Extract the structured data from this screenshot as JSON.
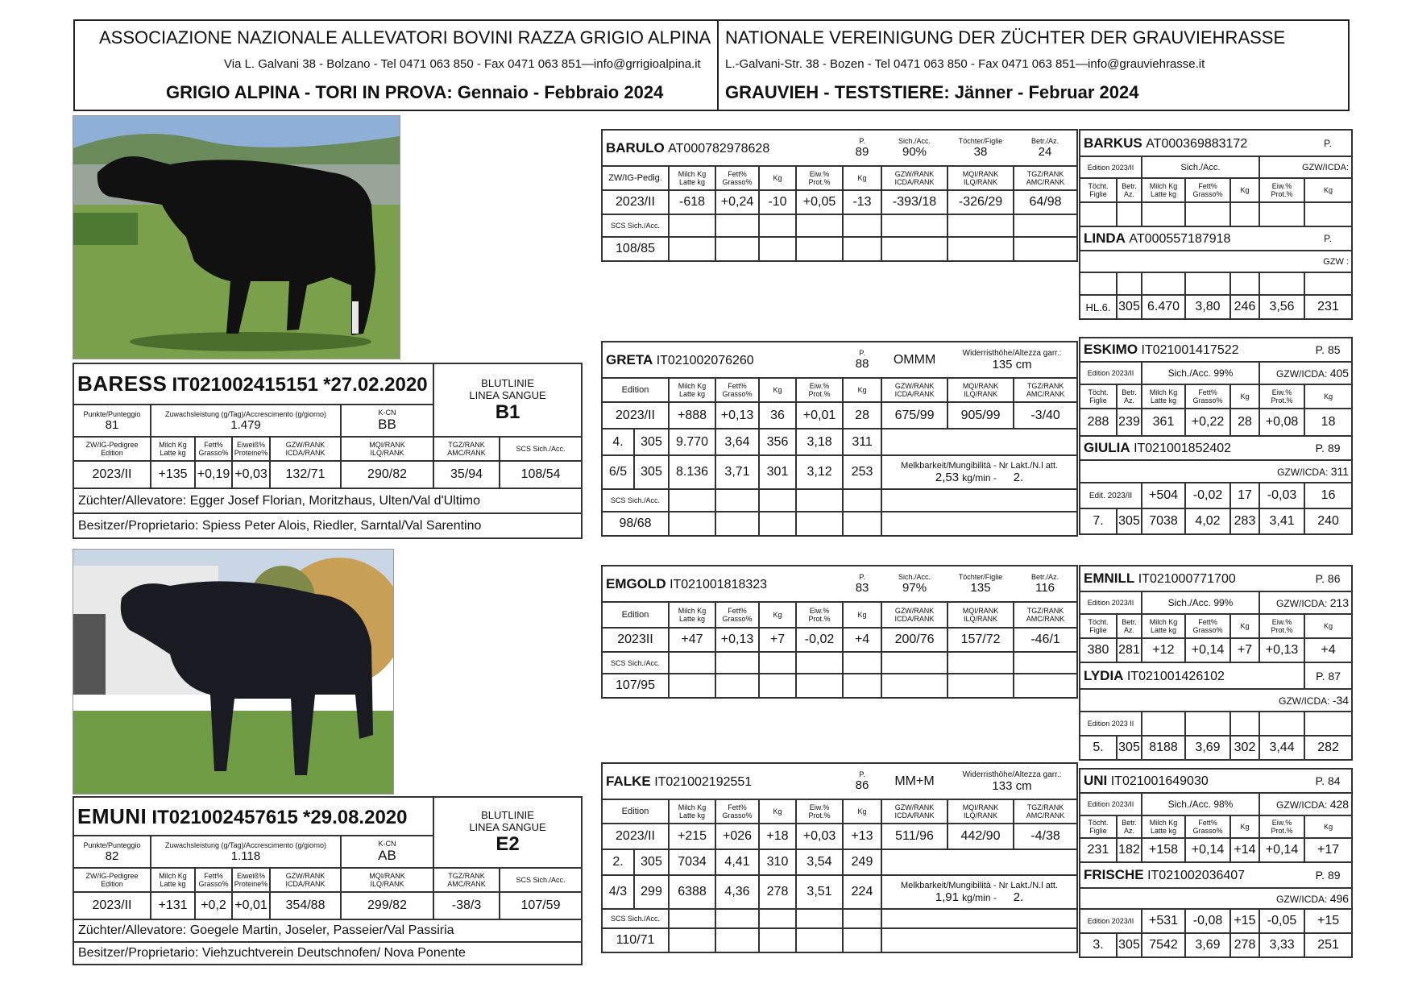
{
  "header": {
    "it_title": "ASSOCIAZIONE NAZIONALE ALLEVATORI BOVINI RAZZA GRIGIO ALPINA",
    "it_address": "Via L. Galvani 38 - Bolzano - Tel 0471 063 850 - Fax  0471 063 851—info@grrigioalpina.it",
    "it_subtitle": "GRIGIO ALPINA - TORI IN PROVA: Gennaio - Febbraio 2024",
    "de_title": "NATIONALE VEREINIGUNG DER ZÜCHTER DER GRAUVIEHRASSE",
    "de_address": "L.-Galvani-Str. 38 - Bozen - Tel 0471 063 850 - Fax  0471 063 851—info@grauviehrasse.it",
    "de_subtitle": "GRAUVIEH - TESTSTIERE: Jänner - Februar 2024"
  },
  "labels": {
    "punkte": "Punkte/Punteggio",
    "zuwachs": "Zuwachsleistung (g/Tag)/Accrescimento (g/giorno)",
    "kcn": "K-CN",
    "blutlinie": "BLUTLINIE",
    "linea": "LINEA SANGUE",
    "zwig_ped": "ZW/IG-Pedigree",
    "edition": "Edition",
    "milch": "Milch Kg",
    "latte": "Latte kg",
    "fett": "Fett%",
    "grasso": "Grasso%",
    "eiweiss": "Eiweiß%",
    "proteine": "Proteine%",
    "gzw": "GZW/RANK",
    "icda": "ICDA/RANK",
    "mqi": "MQI/RANK",
    "ilq": "ILQ/RANK",
    "tgz": "TGZ/RANK",
    "amc": "AMC/RANK",
    "scs": "SCS Sich./Acc.",
    "kg": "Kg",
    "eiw": "Eiw.%",
    "prot": "Prot.%",
    "p": "P.",
    "sich": "Sich./Acc.",
    "toechter": "Töchter/Figlie",
    "betr": "Betr./Az.",
    "zwig": "ZW/IG-Pedig.",
    "widerrist": "Widerristhöhe/Altezza garr.:",
    "melkbarkeit": "Melkbarkeit/Mungibilità - Nr Lakt./N.l att.",
    "kgmin": "kg/min -",
    "toecht": "Töcht.",
    "figlie": "Figlie",
    "betr2": "Betr.",
    "az": "Az.",
    "edit_short": "Edit.",
    "edition_2023": "Edition 2023/II",
    "gzw_icda": "GZW/ICDA:",
    "gzw_colon": "GZW :",
    "sich_acc": "Sich./Acc."
  },
  "baress": {
    "name": "BARESS",
    "code": "IT021002415151",
    "born": "*27.02.2020",
    "punkte": "81",
    "zuwachs": "1.479",
    "kcn": "BB",
    "line": "B1",
    "edition": "2023/II",
    "milch": "+135",
    "fett": "+0,19",
    "eiw": "+0,03",
    "gzw": "132/71",
    "mqi": "290/82",
    "tgz": "35/94",
    "scs": "108/54",
    "zuechter": "Züchter/Allevatore: Egger Josef Florian, Moritzhaus, Ulten/Val d'Ultimo",
    "besitzer": "Besitzer/Proprietario: Spiess Peter Alois, Riedler, Sarntal/Val Sarentino"
  },
  "emuni": {
    "name": "EMUNI",
    "code": "IT021002457615",
    "born": "*29.08.2020",
    "punkte": "82",
    "zuwachs": "1.118",
    "kcn": "AB",
    "line": "E2",
    "edition": "2023/II",
    "milch": "+131",
    "fett": "+0,2",
    "eiw": "+0,01",
    "gzw": "354/88",
    "mqi": "299/82",
    "tgz": "-38/3",
    "scs": "107/59",
    "zuechter": "Züchter/Allevatore: Goegele Martin, Joseler, Passeier/Val Passiria",
    "besitzer": "Besitzer/Proprietario: Viehzuchtverein Deutschnofen/ Nova Ponente"
  },
  "barulo": {
    "name": "BARULO",
    "code": "AT000782978628",
    "p": "89",
    "sich": "90%",
    "toechter": "38",
    "betr": "24",
    "row": [
      "2023/II",
      "-618",
      "+0,24",
      "-10",
      "+0,05",
      "-13",
      "-393/18",
      "-326/29",
      "64/98"
    ],
    "scs": "108/85"
  },
  "greta": {
    "name": "GRETA",
    "code": "IT021002076260",
    "p": "88",
    "type": "OMMM",
    "height": "135 cm",
    "row": [
      "2023/II",
      "+888",
      "+0,13",
      "36",
      "+0,01",
      "28",
      "675/99",
      "905/99",
      "-3/40"
    ],
    "lakt1": [
      "4.",
      "305",
      "9.770",
      "3,64",
      "356",
      "3,18",
      "311"
    ],
    "lakt2": [
      "6/5",
      "305",
      "8.136",
      "3,71",
      "301",
      "3,12",
      "253"
    ],
    "melk_val": "2,53",
    "melk_nr": "2.",
    "scs": "98/68"
  },
  "emgold": {
    "name": "EMGOLD",
    "code": "IT021001818323",
    "p": "83",
    "sich": "97%",
    "toechter": "135",
    "betr": "116",
    "row": [
      "2023II",
      "+47",
      "+0,13",
      "+7",
      "-0,02",
      "+4",
      "200/76",
      "157/72",
      "-46/1"
    ],
    "scs": "107/95"
  },
  "falke": {
    "name": "FALKE",
    "code": "IT021002192551",
    "p": "86",
    "type": "MM+M",
    "height": "133 cm",
    "row": [
      "2023/II",
      "+215",
      "+026",
      "+18",
      "+0,03",
      "+13",
      "511/96",
      "442/90",
      "-4/38"
    ],
    "lakt1": [
      "2.",
      "305",
      "7034",
      "4,41",
      "310",
      "3,54",
      "249"
    ],
    "lakt2": [
      "4/3",
      "299",
      "6388",
      "4,36",
      "278",
      "3,51",
      "224"
    ],
    "melk_val": "1,91",
    "melk_nr": "2.",
    "scs": "110/71"
  },
  "barkus": {
    "name": "BARKUS",
    "code": "AT000369883172",
    "p": "P."
  },
  "linda": {
    "name": "LINDA",
    "code": "AT000557187918",
    "p": "P.",
    "row": [
      "HL.6.",
      "305",
      "6.470",
      "3,80",
      "246",
      "3,56",
      "231"
    ]
  },
  "eskimo": {
    "name": "ESKIMO",
    "code": "IT021001417522",
    "p": "P. 85",
    "sich": "Sich./Acc. 99%",
    "gzw": "405",
    "row": [
      "288",
      "239",
      "361",
      "+0,22",
      "28",
      "+0,08",
      "18"
    ]
  },
  "giulia": {
    "name": "GIULIA",
    "code": "IT021001852402",
    "p": "P. 89",
    "gzw": "311",
    "row1": [
      "Edit. 2023/II",
      "+504",
      "-0,02",
      "17",
      "-0,03",
      "16"
    ],
    "row2": [
      "7.",
      "305",
      "7038",
      "4,02",
      "283",
      "3,41",
      "240"
    ]
  },
  "emnill": {
    "name": "EMNILL",
    "code": "IT021000771700",
    "p": "P. 86",
    "sich": "Sich./Acc. 99%",
    "gzw": "213",
    "row": [
      "380",
      "281",
      "+12",
      "+0,14",
      "+7",
      "+0,13",
      "+4"
    ]
  },
  "lydia": {
    "name": "LYDIA",
    "code": "IT021001426102",
    "p": "P. 87",
    "gzw": "-34",
    "edition": "Edition 2023 II",
    "row": [
      "5.",
      "305",
      "8188",
      "3,69",
      "302",
      "3,44",
      "282"
    ]
  },
  "uni": {
    "name": "UNI",
    "code": "IT021001649030",
    "p": "P. 84",
    "sich": "Sich./Acc. 98%",
    "gzw": "428",
    "row": [
      "231",
      "182",
      "+158",
      "+0,14",
      "+14",
      "+0,14",
      "+17"
    ]
  },
  "frische": {
    "name": "FRISCHE",
    "code": "IT021002036407",
    "p": "P. 89",
    "gzw": "496",
    "row1": [
      "+531",
      "-0,08",
      "+15",
      "-0,05",
      "+15"
    ],
    "row2": [
      "3.",
      "305",
      "7542",
      "3,69",
      "278",
      "3,33",
      "251"
    ]
  }
}
